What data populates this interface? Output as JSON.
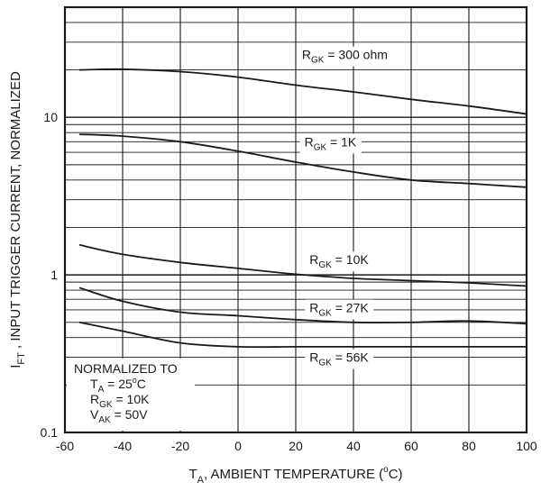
{
  "chart_data": {
    "type": "line",
    "xlabel": {
      "main": "T",
      "sub": "A",
      "rest": ", AMBIENT TEMPERATURE (",
      "sup": "o",
      "end": "C)"
    },
    "ylabel": {
      "main": "I",
      "sub": "FT",
      "rest": " , INPUT TRIGGER CURRENT, NORMALIZED"
    },
    "xlim": [
      -60,
      100
    ],
    "ylim": [
      0.1,
      50
    ],
    "y_scale": "log",
    "grid": true,
    "x_ticks": [
      "-60",
      "-40",
      "-20",
      "0",
      "20",
      "40",
      "60",
      "80",
      "100"
    ],
    "y_ticks": [
      {
        "value": 0.1,
        "label": "0.1"
      },
      {
        "value": 1,
        "label": "1"
      },
      {
        "value": 10,
        "label": "10"
      }
    ],
    "series": [
      {
        "name": {
          "main": "R",
          "sub": "GK",
          "rest": " = 300 ohm"
        },
        "x": [
          -55,
          -40,
          -20,
          0,
          20,
          40,
          60,
          80,
          100
        ],
        "y": [
          20,
          20.2,
          19.5,
          18,
          16,
          14.5,
          13,
          11.8,
          10.5
        ]
      },
      {
        "name": {
          "main": "R",
          "sub": "GK",
          "rest": " = 1K"
        },
        "x": [
          -55,
          -40,
          -20,
          0,
          20,
          40,
          60,
          80,
          100
        ],
        "y": [
          7.8,
          7.6,
          7,
          6.1,
          5.2,
          4.5,
          4,
          3.8,
          3.6
        ]
      },
      {
        "name": {
          "main": "R",
          "sub": "GK",
          "rest": " = 10K"
        },
        "x": [
          -55,
          -40,
          -20,
          0,
          20,
          40,
          60,
          80,
          100
        ],
        "y": [
          1.55,
          1.35,
          1.2,
          1.1,
          1.01,
          0.95,
          0.92,
          0.89,
          0.85
        ]
      },
      {
        "name": {
          "main": "R",
          "sub": "GK",
          "rest": " = 27K"
        },
        "x": [
          -55,
          -40,
          -20,
          0,
          20,
          40,
          60,
          80,
          100
        ],
        "y": [
          0.83,
          0.68,
          0.58,
          0.55,
          0.52,
          0.5,
          0.5,
          0.51,
          0.49
        ]
      },
      {
        "name": {
          "main": "R",
          "sub": "GK",
          "rest": " = 56K"
        },
        "x": [
          -55,
          -40,
          -20,
          0,
          20,
          40,
          60,
          80,
          100
        ],
        "y": [
          0.5,
          0.44,
          0.37,
          0.35,
          0.35,
          0.35,
          0.35,
          0.35,
          0.35
        ]
      }
    ],
    "annotation": {
      "line1": "NORMALIZED TO",
      "line2": {
        "main": "T",
        "sub": "A",
        "rest": " = 25",
        "sup": "o",
        "end": "C"
      },
      "line3": {
        "main": "R",
        "sub": "GK",
        "rest": " = 10K"
      },
      "line4": {
        "main": "V",
        "sub": "AK",
        "rest": " = 50V"
      }
    }
  }
}
